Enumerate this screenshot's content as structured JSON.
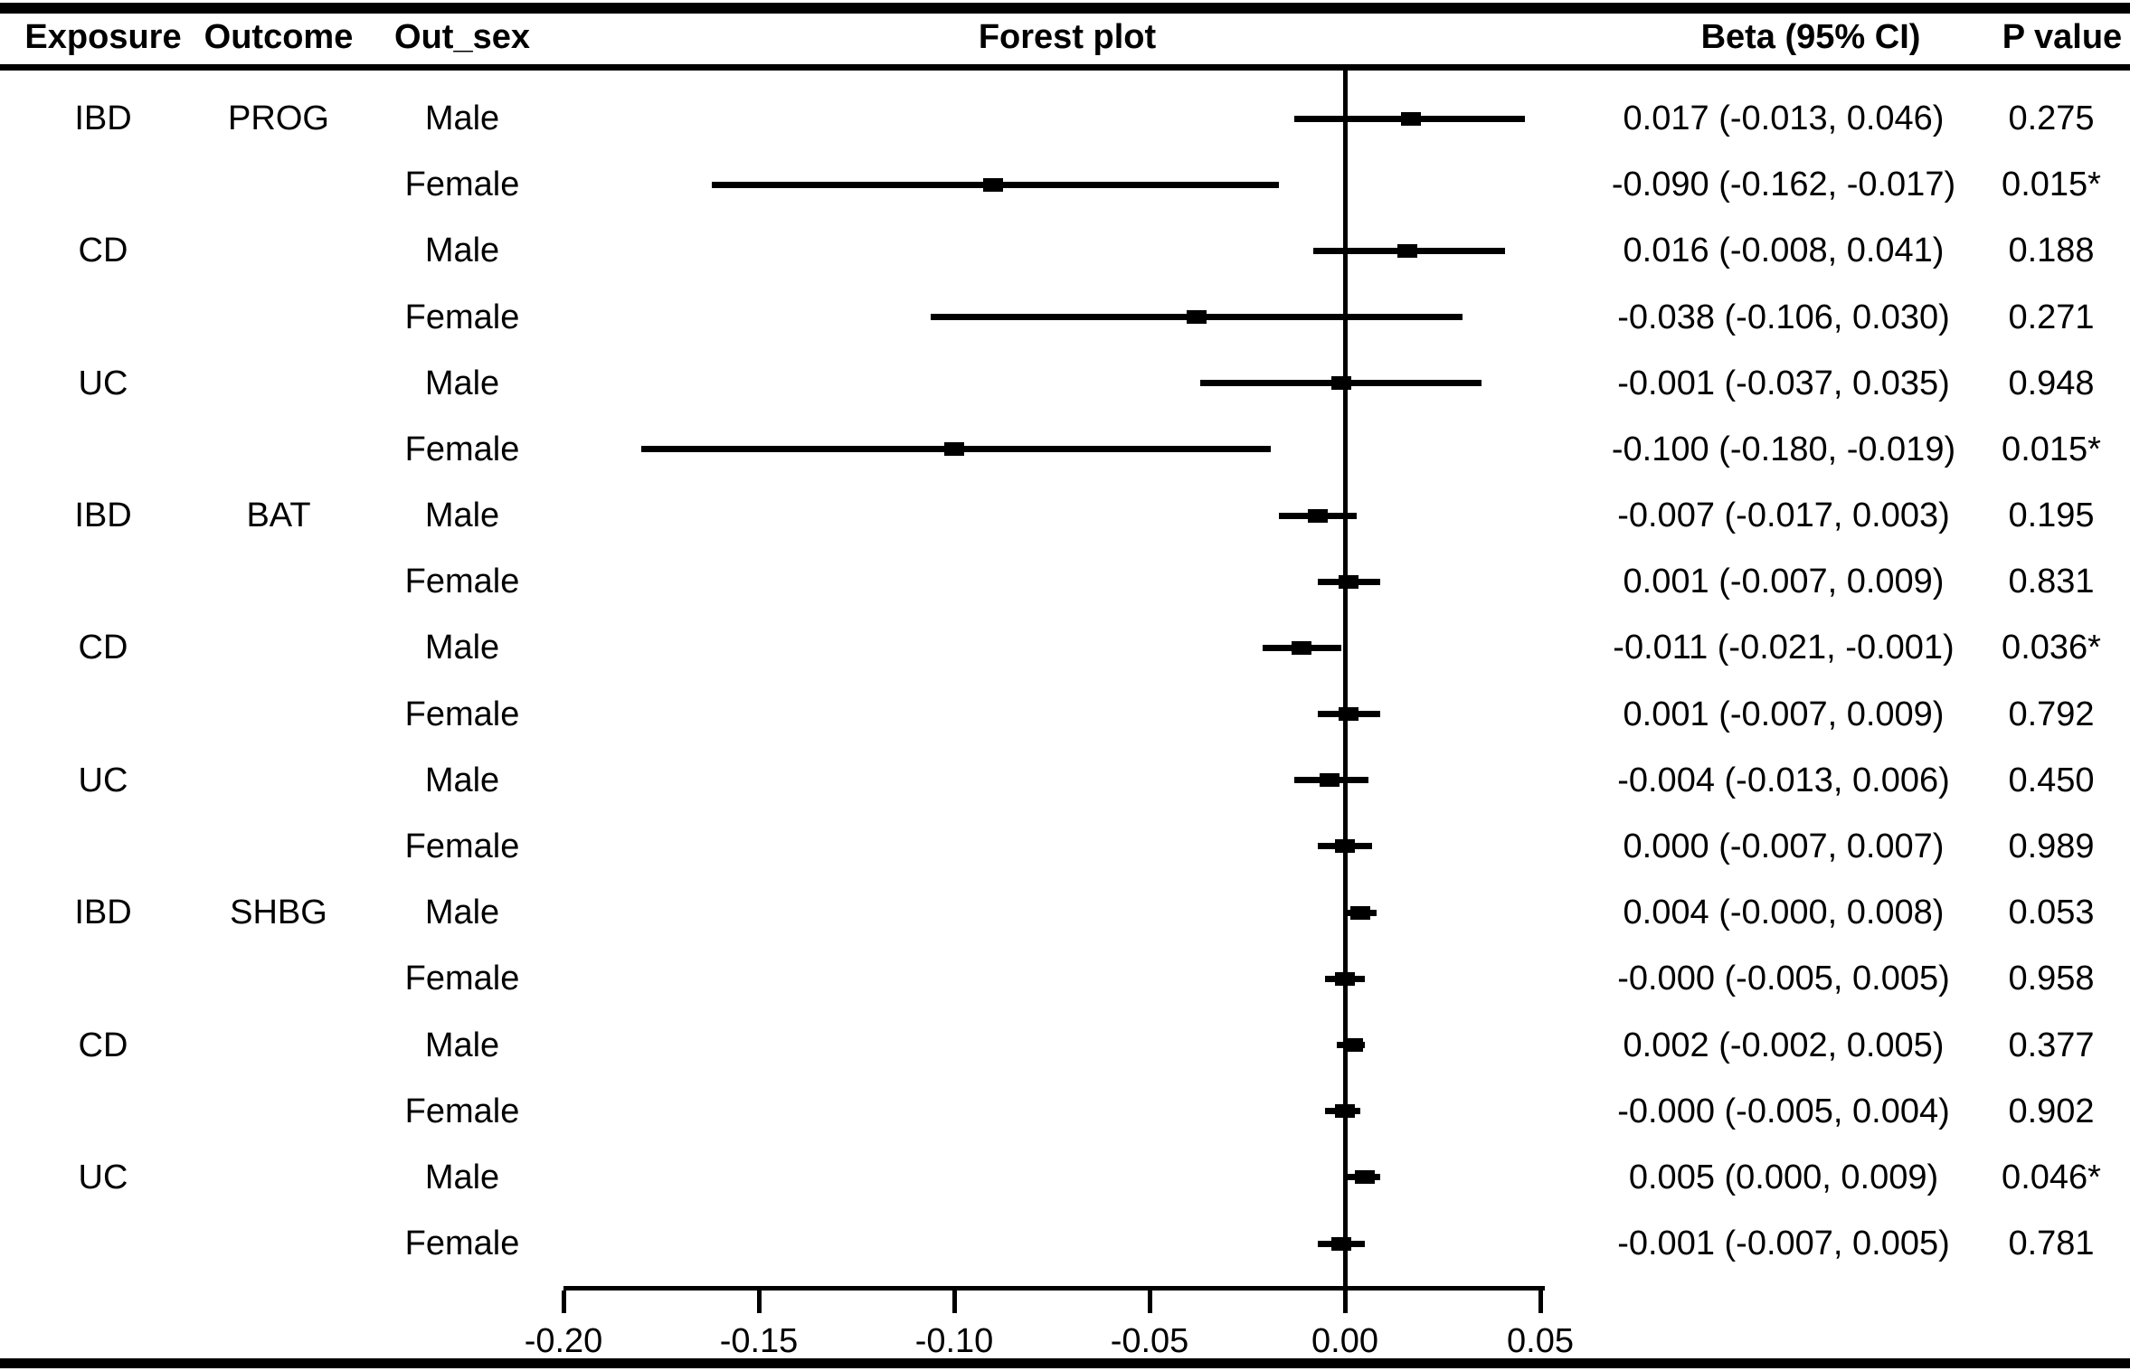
{
  "header": {
    "exposure": "Exposure",
    "outcome": "Outcome",
    "out_sex": "Out_sex",
    "forest": "Forest plot",
    "beta": "Beta (95% CI)",
    "p": "P value"
  },
  "axis": {
    "tick_labels": [
      "-0.20",
      "-0.15",
      "-0.10",
      "-0.05",
      "0.00",
      "0.05"
    ],
    "tick_values": [
      -0.2,
      -0.15,
      -0.1,
      -0.05,
      0.0,
      0.05
    ],
    "min": -0.2,
    "max": 0.05,
    "zero_value": 0.0
  },
  "rows": [
    {
      "exposure": "IBD",
      "outcome": "PROG",
      "sex": "Male",
      "beta": 0.017,
      "lo": -0.013,
      "hi": 0.046,
      "beta_text": "0.017 (-0.013, 0.046)",
      "p_text": "0.275"
    },
    {
      "exposure": "",
      "outcome": "",
      "sex": "Female",
      "beta": -0.09,
      "lo": -0.162,
      "hi": -0.017,
      "beta_text": "-0.090 (-0.162, -0.017)",
      "p_text": "0.015*"
    },
    {
      "exposure": "CD",
      "outcome": "",
      "sex": "Male",
      "beta": 0.016,
      "lo": -0.008,
      "hi": 0.041,
      "beta_text": "0.016 (-0.008, 0.041)",
      "p_text": "0.188"
    },
    {
      "exposure": "",
      "outcome": "",
      "sex": "Female",
      "beta": -0.038,
      "lo": -0.106,
      "hi": 0.03,
      "beta_text": "-0.038 (-0.106, 0.030)",
      "p_text": "0.271"
    },
    {
      "exposure": "UC",
      "outcome": "",
      "sex": "Male",
      "beta": -0.001,
      "lo": -0.037,
      "hi": 0.035,
      "beta_text": "-0.001 (-0.037, 0.035)",
      "p_text": "0.948"
    },
    {
      "exposure": "",
      "outcome": "",
      "sex": "Female",
      "beta": -0.1,
      "lo": -0.18,
      "hi": -0.019,
      "beta_text": "-0.100 (-0.180, -0.019)",
      "p_text": "0.015*"
    },
    {
      "exposure": "IBD",
      "outcome": "BAT",
      "sex": "Male",
      "beta": -0.007,
      "lo": -0.017,
      "hi": 0.003,
      "beta_text": "-0.007 (-0.017, 0.003)",
      "p_text": "0.195"
    },
    {
      "exposure": "",
      "outcome": "",
      "sex": "Female",
      "beta": 0.001,
      "lo": -0.007,
      "hi": 0.009,
      "beta_text": "0.001 (-0.007, 0.009)",
      "p_text": "0.831"
    },
    {
      "exposure": "CD",
      "outcome": "",
      "sex": "Male",
      "beta": -0.011,
      "lo": -0.021,
      "hi": -0.001,
      "beta_text": "-0.011 (-0.021, -0.001)",
      "p_text": "0.036*"
    },
    {
      "exposure": "",
      "outcome": "",
      "sex": "Female",
      "beta": 0.001,
      "lo": -0.007,
      "hi": 0.009,
      "beta_text": "0.001 (-0.007, 0.009)",
      "p_text": "0.792"
    },
    {
      "exposure": "UC",
      "outcome": "",
      "sex": "Male",
      "beta": -0.004,
      "lo": -0.013,
      "hi": 0.006,
      "beta_text": "-0.004 (-0.013, 0.006)",
      "p_text": "0.450"
    },
    {
      "exposure": "",
      "outcome": "",
      "sex": "Female",
      "beta": 0.0,
      "lo": -0.007,
      "hi": 0.007,
      "beta_text": "0.000 (-0.007, 0.007)",
      "p_text": "0.989"
    },
    {
      "exposure": "IBD",
      "outcome": "SHBG",
      "sex": "Male",
      "beta": 0.004,
      "lo": -0.0,
      "hi": 0.008,
      "beta_text": "0.004 (-0.000, 0.008)",
      "p_text": "0.053"
    },
    {
      "exposure": "",
      "outcome": "",
      "sex": "Female",
      "beta": -0.0,
      "lo": -0.005,
      "hi": 0.005,
      "beta_text": "-0.000 (-0.005, 0.005)",
      "p_text": "0.958"
    },
    {
      "exposure": "CD",
      "outcome": "",
      "sex": "Male",
      "beta": 0.002,
      "lo": -0.002,
      "hi": 0.005,
      "beta_text": "0.002 (-0.002, 0.005)",
      "p_text": "0.377"
    },
    {
      "exposure": "",
      "outcome": "",
      "sex": "Female",
      "beta": -0.0,
      "lo": -0.005,
      "hi": 0.004,
      "beta_text": "-0.000 (-0.005, 0.004)",
      "p_text": "0.902"
    },
    {
      "exposure": "UC",
      "outcome": "",
      "sex": "Male",
      "beta": 0.005,
      "lo": 0.0,
      "hi": 0.009,
      "beta_text": "0.005 (0.000, 0.009)",
      "p_text": "0.046*"
    },
    {
      "exposure": "",
      "outcome": "",
      "sex": "Female",
      "beta": -0.001,
      "lo": -0.007,
      "hi": 0.005,
      "beta_text": "-0.001 (-0.007, 0.005)",
      "p_text": "0.781"
    }
  ],
  "chart_data": {
    "type": "scatter",
    "variant": "forest-plot",
    "title": "Forest plot",
    "xlabel": "",
    "xlim": [
      -0.2,
      0.05
    ],
    "x_ticks": [
      -0.2,
      -0.15,
      -0.1,
      -0.05,
      0.0,
      0.05
    ],
    "reference_line_x": 0.0,
    "grid": false,
    "legend_position": "none",
    "columns": [
      "Exposure",
      "Outcome",
      "Out_sex",
      "Forest plot",
      "Beta (95% CI)",
      "P value"
    ],
    "points": [
      {
        "exposure": "IBD",
        "outcome": "PROG",
        "out_sex": "Male",
        "beta": 0.017,
        "ci_low": -0.013,
        "ci_high": 0.046,
        "p_value": "0.275"
      },
      {
        "exposure": "IBD",
        "outcome": "PROG",
        "out_sex": "Female",
        "beta": -0.09,
        "ci_low": -0.162,
        "ci_high": -0.017,
        "p_value": "0.015*"
      },
      {
        "exposure": "CD",
        "outcome": "PROG",
        "out_sex": "Male",
        "beta": 0.016,
        "ci_low": -0.008,
        "ci_high": 0.041,
        "p_value": "0.188"
      },
      {
        "exposure": "CD",
        "outcome": "PROG",
        "out_sex": "Female",
        "beta": -0.038,
        "ci_low": -0.106,
        "ci_high": 0.03,
        "p_value": "0.271"
      },
      {
        "exposure": "UC",
        "outcome": "PROG",
        "out_sex": "Male",
        "beta": -0.001,
        "ci_low": -0.037,
        "ci_high": 0.035,
        "p_value": "0.948"
      },
      {
        "exposure": "UC",
        "outcome": "PROG",
        "out_sex": "Female",
        "beta": -0.1,
        "ci_low": -0.18,
        "ci_high": -0.019,
        "p_value": "0.015*"
      },
      {
        "exposure": "IBD",
        "outcome": "BAT",
        "out_sex": "Male",
        "beta": -0.007,
        "ci_low": -0.017,
        "ci_high": 0.003,
        "p_value": "0.195"
      },
      {
        "exposure": "IBD",
        "outcome": "BAT",
        "out_sex": "Female",
        "beta": 0.001,
        "ci_low": -0.007,
        "ci_high": 0.009,
        "p_value": "0.831"
      },
      {
        "exposure": "CD",
        "outcome": "BAT",
        "out_sex": "Male",
        "beta": -0.011,
        "ci_low": -0.021,
        "ci_high": -0.001,
        "p_value": "0.036*"
      },
      {
        "exposure": "CD",
        "outcome": "BAT",
        "out_sex": "Female",
        "beta": 0.001,
        "ci_low": -0.007,
        "ci_high": 0.009,
        "p_value": "0.792"
      },
      {
        "exposure": "UC",
        "outcome": "BAT",
        "out_sex": "Male",
        "beta": -0.004,
        "ci_low": -0.013,
        "ci_high": 0.006,
        "p_value": "0.450"
      },
      {
        "exposure": "UC",
        "outcome": "BAT",
        "out_sex": "Female",
        "beta": 0.0,
        "ci_low": -0.007,
        "ci_high": 0.007,
        "p_value": "0.989"
      },
      {
        "exposure": "IBD",
        "outcome": "SHBG",
        "out_sex": "Male",
        "beta": 0.004,
        "ci_low": -0.0,
        "ci_high": 0.008,
        "p_value": "0.053"
      },
      {
        "exposure": "IBD",
        "outcome": "SHBG",
        "out_sex": "Female",
        "beta": -0.0,
        "ci_low": -0.005,
        "ci_high": 0.005,
        "p_value": "0.958"
      },
      {
        "exposure": "CD",
        "outcome": "SHBG",
        "out_sex": "Male",
        "beta": 0.002,
        "ci_low": -0.002,
        "ci_high": 0.005,
        "p_value": "0.377"
      },
      {
        "exposure": "CD",
        "outcome": "SHBG",
        "out_sex": "Female",
        "beta": -0.0,
        "ci_low": -0.005,
        "ci_high": 0.004,
        "p_value": "0.902"
      },
      {
        "exposure": "UC",
        "outcome": "SHBG",
        "out_sex": "Male",
        "beta": 0.005,
        "ci_low": 0.0,
        "ci_high": 0.009,
        "p_value": "0.046*"
      },
      {
        "exposure": "UC",
        "outcome": "SHBG",
        "out_sex": "Female",
        "beta": -0.001,
        "ci_low": -0.007,
        "ci_high": 0.005,
        "p_value": "0.781"
      }
    ],
    "colors": {
      "foreground": "#000000",
      "background": "#ffffff"
    }
  }
}
